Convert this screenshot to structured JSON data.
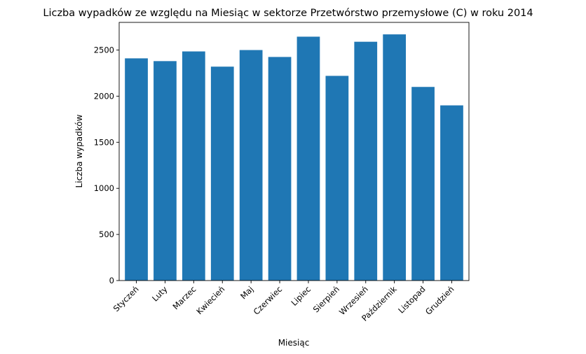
{
  "chart_data": {
    "type": "bar",
    "title": "Liczba wypadków ze względu na Miesiąc w sektorze Przetwórstwo przemysłowe (C)   w roku 2014",
    "xlabel": "Miesiąc",
    "ylabel": "Liczba wypadków",
    "categories": [
      "Styczeń",
      "Luty",
      "Marzec",
      "Kwiecień",
      "Maj",
      "Czerwiec",
      "Lipiec",
      "Sierpień",
      "Wrzesień",
      "Październik",
      "Listopad",
      "Grudzień"
    ],
    "values": [
      2410,
      2380,
      2485,
      2320,
      2500,
      2425,
      2645,
      2220,
      2590,
      2670,
      2100,
      1900
    ],
    "ylim": [
      0,
      2800
    ],
    "yticks": [
      0,
      500,
      1000,
      1500,
      2000,
      2500
    ],
    "grid": false,
    "bar_color": "#1f77b4"
  }
}
